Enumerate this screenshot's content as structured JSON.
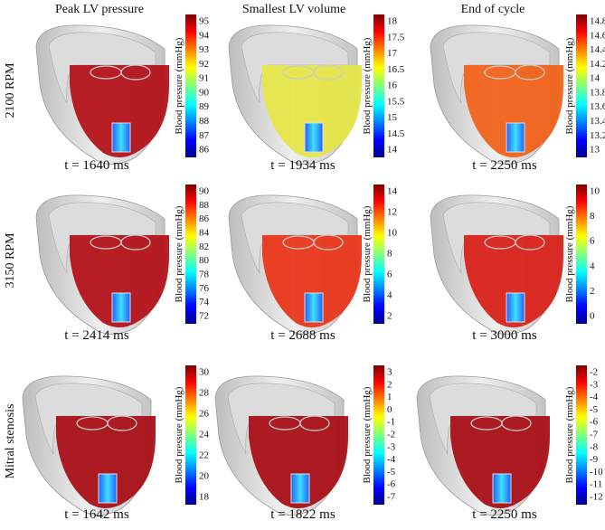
{
  "columns": [
    "Peak LV pressure",
    "Smallest LV volume",
    "End of cycle"
  ],
  "rows": [
    "2100 RPM",
    "3150 RPM",
    "Mitral stenosis"
  ],
  "colorbar_label": "Blood pressure (mmHg)",
  "panels": [
    [
      {
        "time": "t = 1640 ms",
        "color": "#b3121a",
        "ticks": [
          95,
          94,
          93,
          92,
          91,
          90,
          89,
          88,
          87,
          86
        ]
      },
      {
        "time": "t = 1934 ms",
        "color": "#e6e64a",
        "ticks": [
          18,
          17.5,
          17,
          16.5,
          16,
          15.5,
          15,
          14.5,
          14
        ]
      },
      {
        "time": "t = 2250 ms",
        "color": "#f0621a",
        "ticks": [
          14.8,
          14.6,
          14.4,
          14.2,
          14,
          13.8,
          13.6,
          13.4,
          13.2,
          13
        ]
      }
    ],
    [
      {
        "time": "t = 2414 ms",
        "color": "#b3121a",
        "ticks": [
          90,
          88,
          86,
          84,
          82,
          80,
          78,
          76,
          74,
          72
        ]
      },
      {
        "time": "t = 2688 ms",
        "color": "#e8361a",
        "ticks": [
          14,
          12,
          10,
          8,
          6,
          4,
          2
        ]
      },
      {
        "time": "t = 3000 ms",
        "color": "#d8221a",
        "ticks": [
          10,
          8,
          6,
          4,
          2,
          0
        ]
      }
    ],
    [
      {
        "time": "t = 1642 ms",
        "color": "#a81016",
        "ticks": [
          30,
          28,
          26,
          24,
          22,
          20,
          18
        ]
      },
      {
        "time": "t = 1822 ms",
        "color": "#a81016",
        "ticks": [
          3,
          2,
          1,
          0,
          -1,
          -2,
          -3,
          -4,
          -5,
          -6,
          -7
        ]
      },
      {
        "time": "t = 2250 ms",
        "color": "#a81016",
        "ticks": [
          -2,
          -3,
          -4,
          -5,
          -6,
          -7,
          -8,
          -9,
          -10,
          -11,
          -12
        ]
      }
    ]
  ]
}
